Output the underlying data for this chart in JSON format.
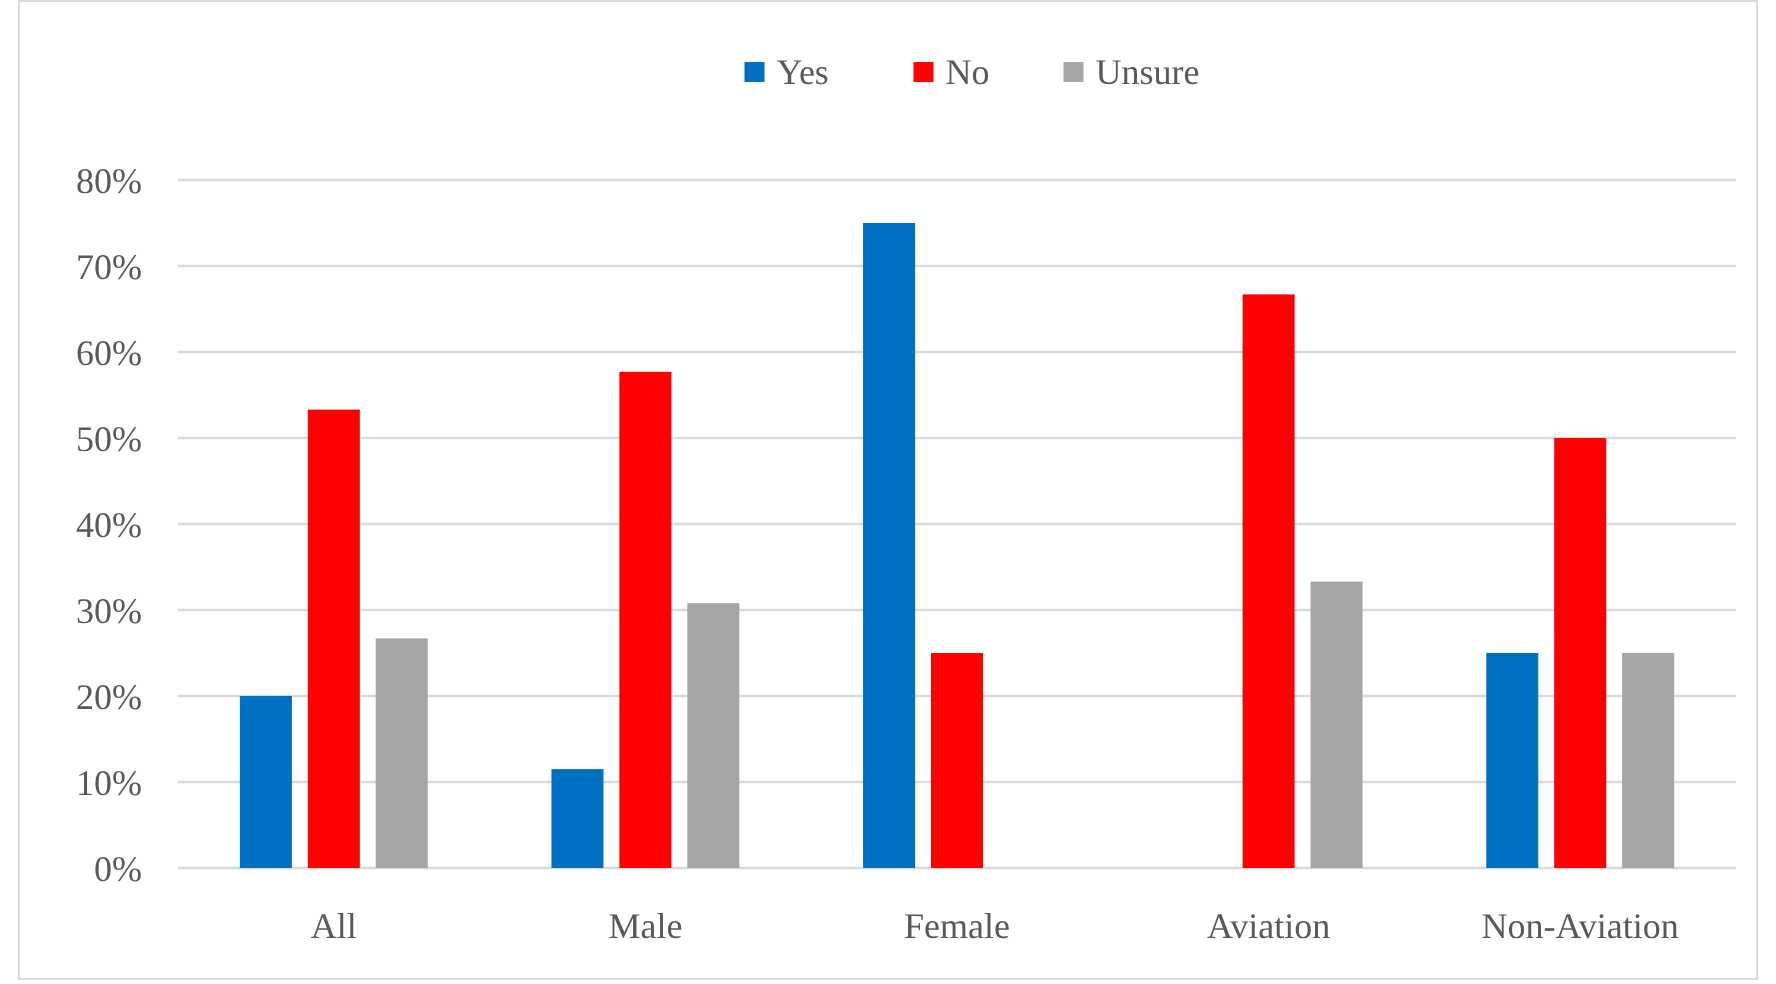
{
  "chart_data": {
    "type": "bar",
    "categories": [
      "All",
      "Male",
      "Female",
      "Aviation",
      "Non-Aviation"
    ],
    "series": [
      {
        "name": "Yes",
        "color": "#0070c0",
        "values": [
          20,
          11.5,
          75,
          0,
          25
        ]
      },
      {
        "name": "No",
        "color": "#ff0000",
        "values": [
          53.3,
          57.7,
          25,
          66.7,
          50
        ]
      },
      {
        "name": "Unsure",
        "color": "#a5a5a5",
        "values": [
          26.7,
          30.8,
          0,
          33.3,
          25
        ]
      }
    ],
    "ylim": [
      0,
      80
    ],
    "yticks": [
      {
        "value": 0,
        "label": "0%"
      },
      {
        "value": 10,
        "label": "10%"
      },
      {
        "value": 20,
        "label": "20%"
      },
      {
        "value": 30,
        "label": "30%"
      },
      {
        "value": 40,
        "label": "40%"
      },
      {
        "value": 50,
        "label": "50%"
      },
      {
        "value": 60,
        "label": "60%"
      },
      {
        "value": 70,
        "label": "70%"
      },
      {
        "value": 80,
        "label": "80%"
      }
    ],
    "grid": "y",
    "legend": "top"
  }
}
